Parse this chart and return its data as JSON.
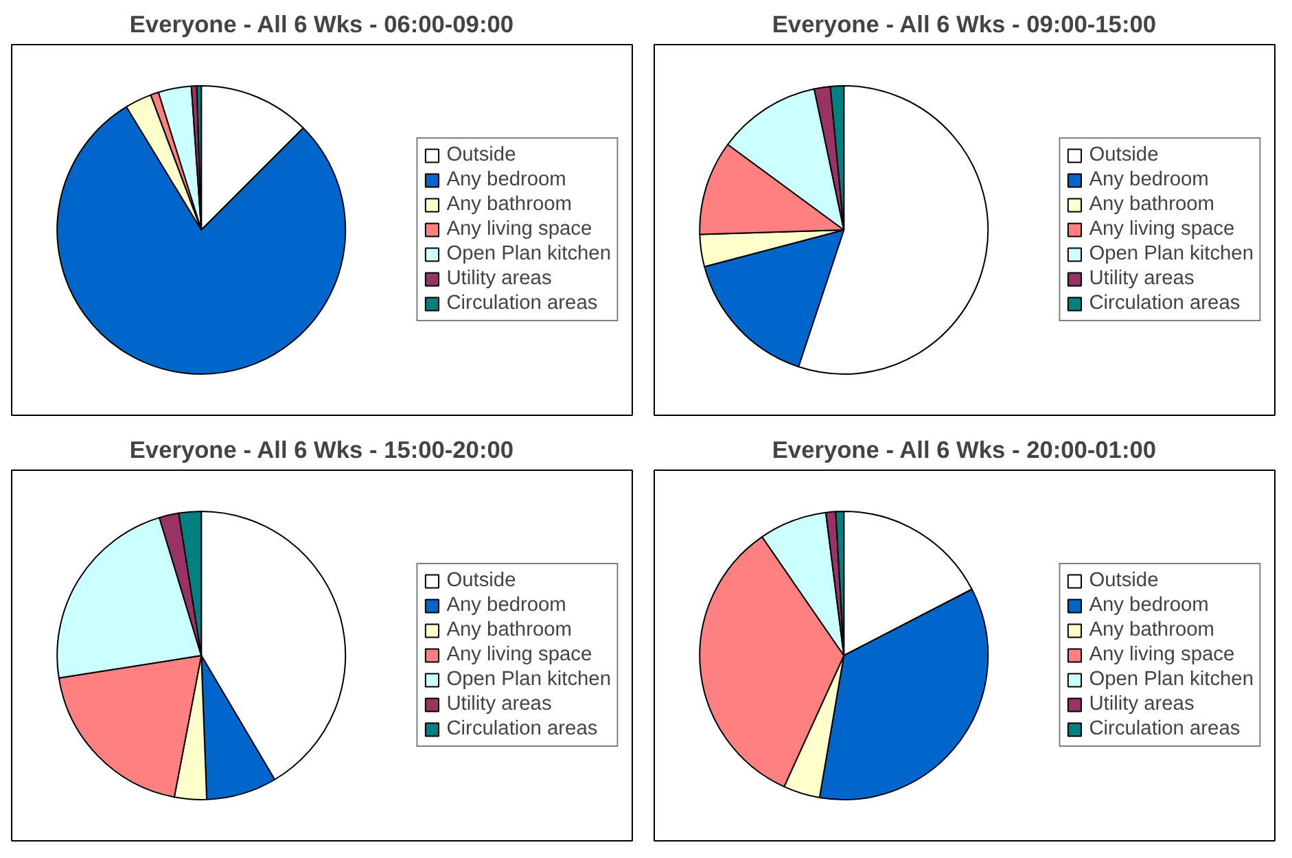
{
  "chart_data": [
    {
      "type": "pie",
      "title": "Everyone - All 6 Wks - 06:00-09:00",
      "categories": [
        "Outside",
        "Any bedroom",
        "Any bathroom",
        "Any living space",
        "Open Plan kitchen",
        "Utility areas",
        "Circulation areas"
      ],
      "values": [
        12.5,
        78.8,
        3,
        0.9,
        3.7,
        0.6,
        0.5
      ],
      "colors": [
        "#ffffff",
        "#0066cc",
        "#ffffcc",
        "#ff8080",
        "#ccffff",
        "#993366",
        "#008080"
      ],
      "legend": "right"
    },
    {
      "type": "pie",
      "title": "Everyone - All 6 Wks - 09:00-15:00",
      "categories": [
        "Outside",
        "Any bedroom",
        "Any bathroom",
        "Any living space",
        "Open Plan kitchen",
        "Utility areas",
        "Circulation areas"
      ],
      "values": [
        55.1,
        15.8,
        3.6,
        10.6,
        11.6,
        1.8,
        1.5
      ],
      "colors": [
        "#ffffff",
        "#0066cc",
        "#ffffcc",
        "#ff8080",
        "#ccffff",
        "#993366",
        "#008080"
      ],
      "legend": "right"
    },
    {
      "type": "pie",
      "title": "Everyone - All 6 Wks - 15:00-20:00",
      "categories": [
        "Outside",
        "Any bedroom",
        "Any bathroom",
        "Any living space",
        "Open Plan kitchen",
        "Utility areas",
        "Circulation areas"
      ],
      "values": [
        41.5,
        7.9,
        3.6,
        19.5,
        22.8,
        2.2,
        2.5
      ],
      "colors": [
        "#ffffff",
        "#0066cc",
        "#ffffcc",
        "#ff8080",
        "#ccffff",
        "#993366",
        "#008080"
      ],
      "legend": "right"
    },
    {
      "type": "pie",
      "title": "Everyone - All 6 Wks - 20:00-01:00",
      "categories": [
        "Outside",
        "Any bedroom",
        "Any bathroom",
        "Any living space",
        "Open Plan kitchen",
        "Utility areas",
        "Circulation areas"
      ],
      "values": [
        17.4,
        35.3,
        4.1,
        33.6,
        7.6,
        1.1,
        0.9
      ],
      "colors": [
        "#ffffff",
        "#0066cc",
        "#ffffcc",
        "#ff8080",
        "#ccffff",
        "#993366",
        "#008080"
      ],
      "legend": "right"
    }
  ]
}
